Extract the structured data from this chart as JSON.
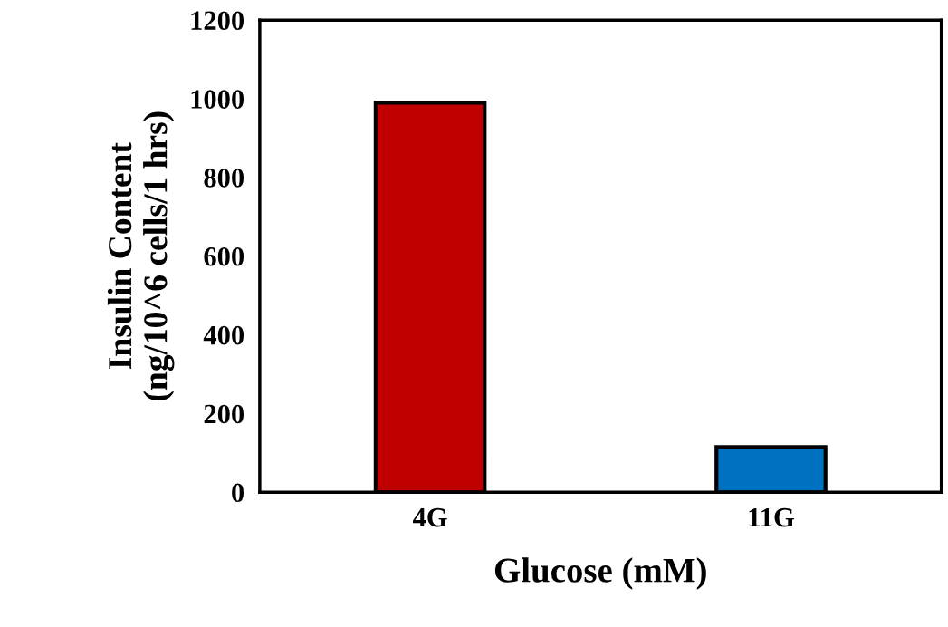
{
  "chart_data": {
    "type": "bar",
    "xlabel": "Glucose (mM)",
    "ylabel": "Insulin Content\n(ng/10^6 cells/1 hrs)",
    "categories": [
      "4G",
      "11G"
    ],
    "values": [
      990,
      115
    ],
    "colors": [
      "#c00000",
      "#0070c0"
    ],
    "ylim": [
      0,
      1200
    ],
    "yticks": [
      0,
      200,
      400,
      600,
      800,
      1000,
      1200
    ],
    "grid": false,
    "legend": false
  }
}
